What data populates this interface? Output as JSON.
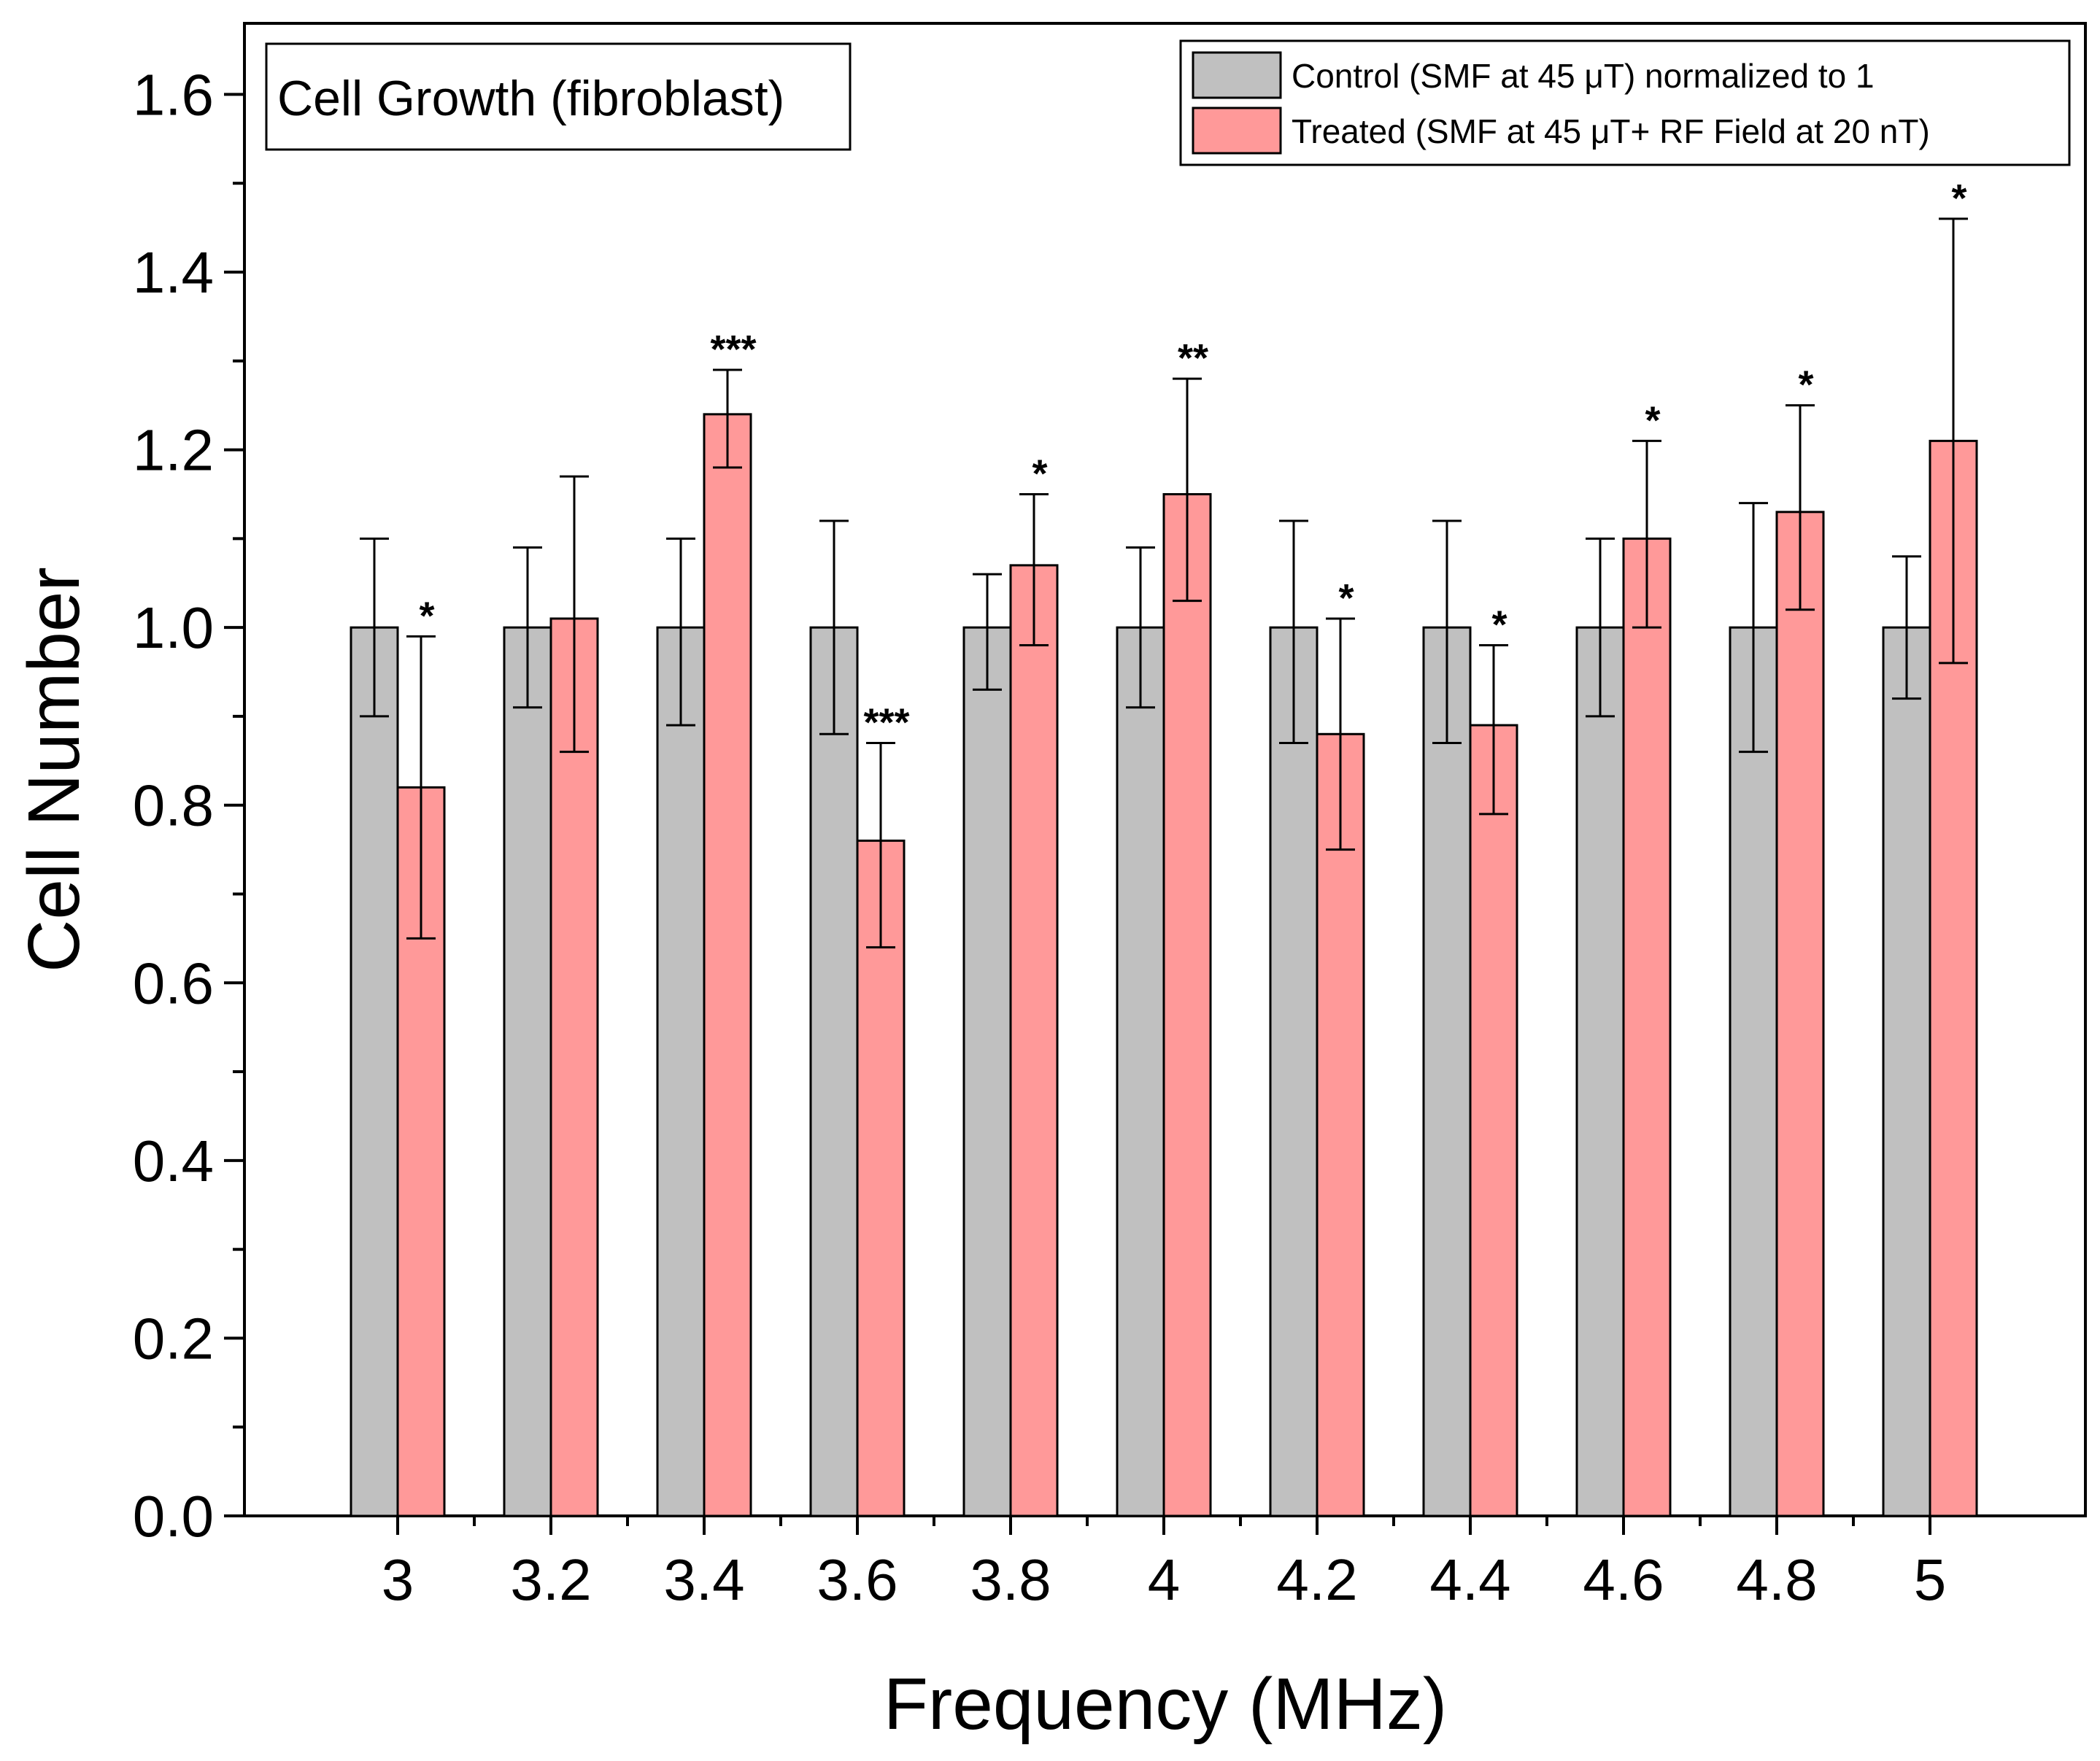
{
  "chart_data": {
    "type": "bar",
    "title": "Cell Growth (fibroblast)",
    "xlabel": "Frequency (MHz)",
    "ylabel": "Cell Number",
    "categories": [
      "3",
      "3.2",
      "3.4",
      "3.6",
      "3.8",
      "4",
      "4.2",
      "4.4",
      "4.6",
      "4.8",
      "5"
    ],
    "y_ticks": [
      "0.0",
      "0.2",
      "0.4",
      "0.6",
      "0.8",
      "1.0",
      "1.2",
      "1.4",
      "1.6"
    ],
    "ylim": [
      0,
      1.68
    ],
    "grid": false,
    "legend_position": "top-right",
    "series": [
      {
        "name": "Control  (SMF at 45 μT) normalized to 1",
        "color": "#c0c0c0",
        "values": [
          1.0,
          1.0,
          1.0,
          1.0,
          1.0,
          1.0,
          1.0,
          1.0,
          1.0,
          1.0,
          1.0
        ],
        "err_low": [
          0.9,
          0.91,
          0.89,
          0.88,
          0.93,
          0.91,
          0.87,
          0.87,
          0.9,
          0.86,
          0.92
        ],
        "err_high": [
          1.1,
          1.09,
          1.1,
          1.12,
          1.06,
          1.09,
          1.12,
          1.12,
          1.1,
          1.14,
          1.08
        ]
      },
      {
        "name": "Treated (SMF at 45 μT+ RF Field at 20 nT)",
        "color": "#ff9999",
        "values": [
          0.82,
          1.01,
          1.24,
          0.76,
          1.07,
          1.15,
          0.88,
          0.89,
          1.1,
          1.13,
          1.21
        ],
        "err_low": [
          0.65,
          0.86,
          1.18,
          0.64,
          0.98,
          1.03,
          0.75,
          0.79,
          1.0,
          1.02,
          0.96
        ],
        "err_high": [
          0.99,
          1.17,
          1.29,
          0.87,
          1.15,
          1.28,
          1.01,
          0.98,
          1.21,
          1.25,
          1.46
        ],
        "significance": [
          "*",
          "",
          "***",
          "***",
          "*",
          "**",
          "*",
          "*",
          "*",
          "*",
          "*"
        ]
      }
    ]
  },
  "colors": {
    "control": "#c0c0c0",
    "treated": "#ff9999",
    "axis": "#000000"
  }
}
